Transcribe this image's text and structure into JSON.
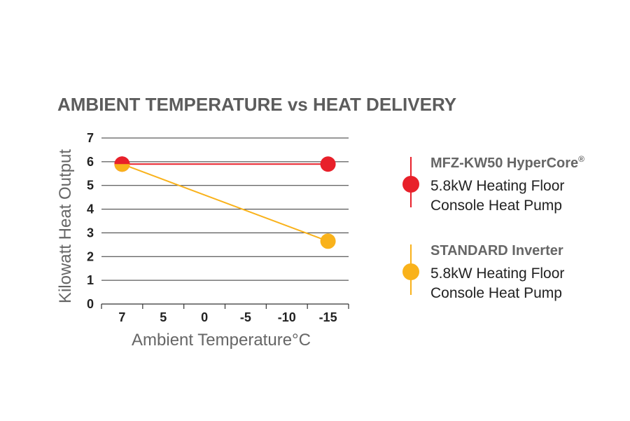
{
  "chart_data": {
    "type": "line",
    "title": "AMBIENT TEMPERATURE vs HEAT DELIVERY",
    "xlabel": "Ambient Temperature°C",
    "ylabel": "Kilowatt Heat Output",
    "x_categories": [
      "7",
      "5",
      "0",
      "-5",
      "-10",
      "-15"
    ],
    "y_ticks": [
      "0",
      "1",
      "2",
      "3",
      "4",
      "5",
      "6",
      "7"
    ],
    "ylim": [
      0,
      7
    ],
    "grid": true,
    "legend_position": "right",
    "series": [
      {
        "name": "MFZ-KW50 HyperCore",
        "name_superscript": "®",
        "description_lines": [
          "5.8kW Heating Floor",
          "Console Heat Pump"
        ],
        "color": "#e8202a",
        "points": [
          {
            "x": "7",
            "y": 5.9
          },
          {
            "x": "-15",
            "y": 5.9
          }
        ]
      },
      {
        "name": "STANDARD Inverter",
        "description_lines": [
          "5.8kW Heating Floor",
          "Console Heat Pump"
        ],
        "color": "#f9b21b",
        "points": [
          {
            "x": "7",
            "y": 5.9
          },
          {
            "x": "-15",
            "y": 2.65
          }
        ]
      }
    ]
  }
}
